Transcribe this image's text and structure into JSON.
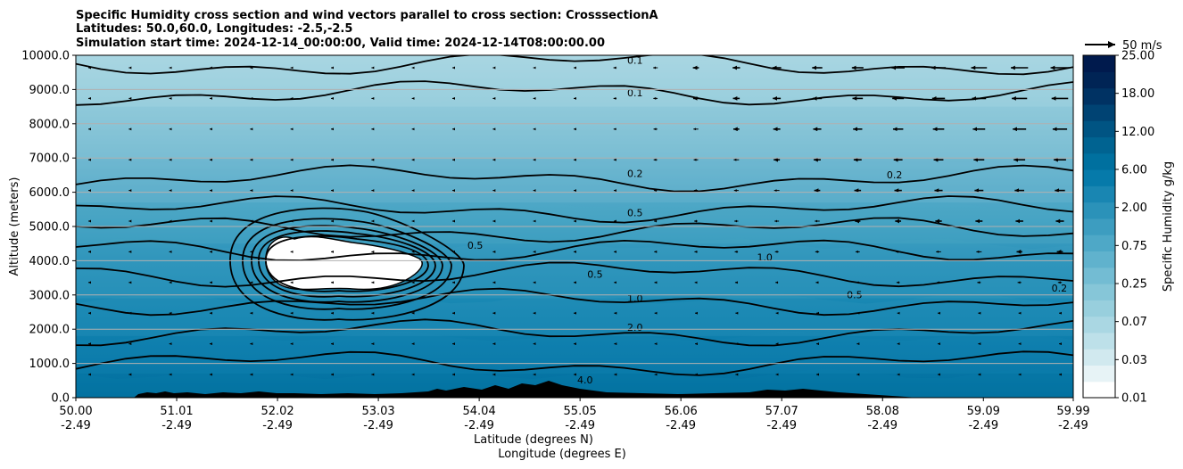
{
  "chart_data": {
    "type": "heatmap",
    "title_lines": [
      "Specific Humidity cross section and wind vectors parallel to cross section: CrosssectionA",
      "Latitudes: 50.0,60.0, Longitudes: -2.5,-2.5",
      "Simulation start time: 2024-12-14_00:00:00, Valid time: 2024-12-14T08:00:00.00"
    ],
    "xlabel_line1": "Latitude (degrees N)",
    "xlabel_line2": "Longitude (degrees E)",
    "ylabel": "Altitude (meters)",
    "x_ticks": [
      {
        "lat": "50.00",
        "lon": "-2.49"
      },
      {
        "lat": "51.01",
        "lon": "-2.49"
      },
      {
        "lat": "52.02",
        "lon": "-2.49"
      },
      {
        "lat": "53.03",
        "lon": "-2.49"
      },
      {
        "lat": "54.04",
        "lon": "-2.49"
      },
      {
        "lat": "55.05",
        "lon": "-2.49"
      },
      {
        "lat": "56.06",
        "lon": "-2.49"
      },
      {
        "lat": "57.07",
        "lon": "-2.49"
      },
      {
        "lat": "58.08",
        "lon": "-2.49"
      },
      {
        "lat": "59.09",
        "lon": "-2.49"
      },
      {
        "lat": "59.99",
        "lon": "-2.49"
      }
    ],
    "y_ticks": [
      "0.0",
      "1000.0",
      "2000.0",
      "3000.0",
      "4000.0",
      "5000.0",
      "6000.0",
      "7000.0",
      "8000.0",
      "9000.0",
      "10000.0"
    ],
    "ylim": [
      0,
      10000
    ],
    "xlim": [
      50.0,
      59.99
    ],
    "grid": "horizontal",
    "colorbar": {
      "label": "Specific Humidity g/kg",
      "ticks": [
        "0.01",
        "0.03",
        "0.07",
        "0.25",
        "0.75",
        "2.00",
        "6.00",
        "12.00",
        "18.00",
        "25.00"
      ],
      "colors": [
        "#ffffff",
        "#e7f3f6",
        "#d1e9ef",
        "#bde0e9",
        "#aad7e3",
        "#98cfdd",
        "#86c6d8",
        "#73bcd3",
        "#60b2cd",
        "#4ea8c7",
        "#3d9dc0",
        "#2b92b9",
        "#1986b2",
        "#067aaa",
        "#00709f",
        "#006391",
        "#005483",
        "#004373",
        "#003263",
        "#002455",
        "#001a4d"
      ]
    },
    "wind_key": "50 m/s",
    "contour_labels": [
      {
        "text": "0.1",
        "lat": 55.6,
        "alt": 9750
      },
      {
        "text": "0.1",
        "lat": 55.6,
        "alt": 8800
      },
      {
        "text": "0.2",
        "lat": 55.6,
        "alt": 6450
      },
      {
        "text": "0.2",
        "lat": 58.2,
        "alt": 6400
      },
      {
        "text": "0.5",
        "lat": 55.6,
        "alt": 5300
      },
      {
        "text": "0.5",
        "lat": 54.0,
        "alt": 4350
      },
      {
        "text": "0.5",
        "lat": 55.2,
        "alt": 3500
      },
      {
        "text": "0.5",
        "lat": 57.8,
        "alt": 2900
      },
      {
        "text": "1.0",
        "lat": 55.6,
        "alt": 2800
      },
      {
        "text": "1.0",
        "lat": 56.9,
        "alt": 4000
      },
      {
        "text": "2.0",
        "lat": 55.6,
        "alt": 1950
      },
      {
        "text": "4.0",
        "lat": 55.1,
        "alt": 420
      },
      {
        "text": "0.2",
        "lat": 59.85,
        "alt": 3100
      }
    ],
    "shaded_bands": [
      {
        "value": "6.00",
        "alt_bottom": 0,
        "alt_top": 700
      },
      {
        "value": "2.00",
        "alt_bottom": 700,
        "alt_top": 1800
      },
      {
        "value": "1.00",
        "alt_bottom": 1800,
        "alt_top": 2900
      },
      {
        "value": "0.75",
        "alt_bottom": 2900,
        "alt_top": 4500
      },
      {
        "value": "0.50",
        "alt_bottom": 4500,
        "alt_top": 5700
      },
      {
        "value": "0.25",
        "alt_bottom": 5700,
        "alt_top": 7000
      },
      {
        "value": "0.15",
        "alt_bottom": 7000,
        "alt_top": 8500
      },
      {
        "value": "0.07",
        "alt_bottom": 8500,
        "alt_top": 10000
      }
    ]
  }
}
